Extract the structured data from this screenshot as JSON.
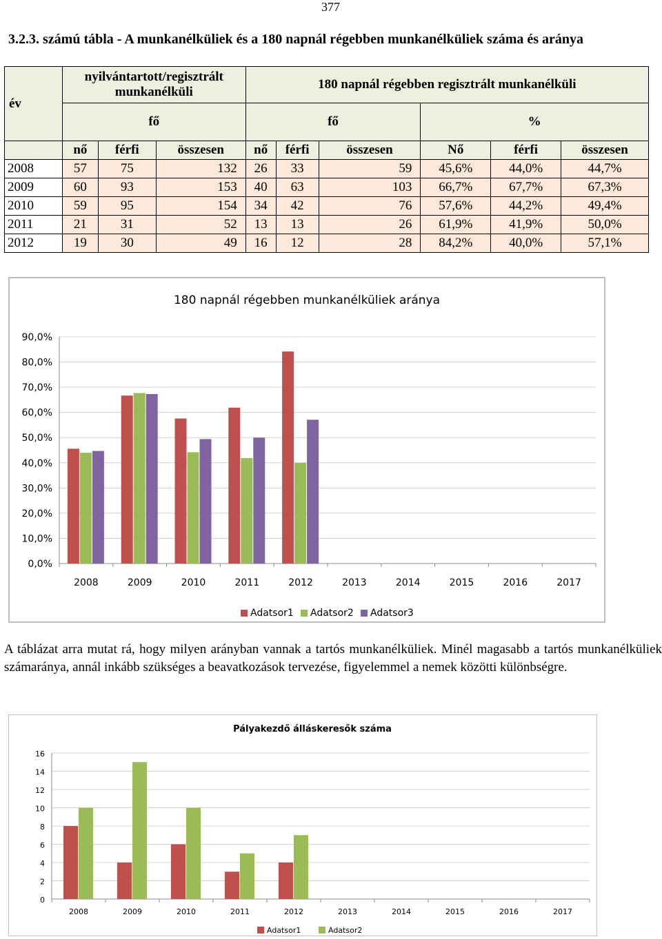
{
  "page_number": "377",
  "table": {
    "caption": "3.2.3. számú tábla - A munkanélküliek és a 180 napnál régebben munkanélküliek száma és aránya",
    "header": {
      "year": "év",
      "group1": "nyilvántartott/regisztrált munkanélküli",
      "group2": "180 napnál régebben regisztrált munkanélküli",
      "unit1": "fő",
      "unit2": "fő",
      "unit3": "%",
      "cols": [
        "nő",
        "férfi",
        "összesen",
        "nő",
        "férfi",
        "összesen",
        "Nő",
        "férfi",
        "összesen"
      ]
    },
    "rows": [
      {
        "year": "2008",
        "values": [
          "57",
          "75",
          "132",
          "26",
          "33",
          "59",
          "45,6%",
          "44,0%",
          "44,7%"
        ]
      },
      {
        "year": "2009",
        "values": [
          "60",
          "93",
          "153",
          "40",
          "63",
          "103",
          "66,7%",
          "67,7%",
          "67,3%"
        ]
      },
      {
        "year": "2010",
        "values": [
          "59",
          "95",
          "154",
          "34",
          "42",
          "76",
          "57,6%",
          "44,2%",
          "49,4%"
        ]
      },
      {
        "year": "2011",
        "values": [
          "21",
          "31",
          "52",
          "13",
          "13",
          "26",
          "61,9%",
          "41,9%",
          "50,0%"
        ]
      },
      {
        "year": "2012",
        "values": [
          "19",
          "30",
          "49",
          "16",
          "12",
          "28",
          "84,2%",
          "40,0%",
          "57,1%"
        ]
      }
    ]
  },
  "paragraph": "A táblázat arra mutat rá, hogy milyen arányban vannak a tartós munkanélküliek. Minél magasabb a tartós munkanélküliek számaránya, annál inkább szükséges a beavatkozások tervezése, figyelemmel a nemek közötti különbségre.",
  "chart_data": [
    {
      "type": "bar",
      "title": "180 napnál régebben munkanélküliek aránya",
      "categories": [
        "2008",
        "2009",
        "2010",
        "2011",
        "2012",
        "2013",
        "2014",
        "2015",
        "2016",
        "2017"
      ],
      "series": [
        {
          "name": "Adatsor1",
          "color": "#c0504d",
          "values": [
            45.6,
            66.7,
            57.6,
            61.9,
            84.2,
            null,
            null,
            null,
            null,
            null
          ]
        },
        {
          "name": "Adatsor2",
          "color": "#9bbb59",
          "values": [
            44.0,
            67.7,
            44.2,
            41.9,
            40.0,
            null,
            null,
            null,
            null,
            null
          ]
        },
        {
          "name": "Adatsor3",
          "color": "#8064a2",
          "values": [
            44.7,
            67.3,
            49.4,
            50.0,
            57.1,
            null,
            null,
            null,
            null,
            null
          ]
        }
      ],
      "yticks": [
        "0,0%",
        "10,0%",
        "20,0%",
        "30,0%",
        "40,0%",
        "50,0%",
        "60,0%",
        "70,0%",
        "80,0%",
        "90,0%"
      ],
      "ylim": [
        0,
        90
      ],
      "grid": true,
      "legend": "bottom"
    },
    {
      "type": "bar",
      "title": "Pályakezdő álláskeresők száma",
      "categories": [
        "2008",
        "2009",
        "2010",
        "2011",
        "2012",
        "2013",
        "2014",
        "2015",
        "2016",
        "2017"
      ],
      "series": [
        {
          "name": "Adatsor1",
          "color": "#c0504d",
          "values": [
            8,
            4,
            6,
            3,
            4,
            null,
            null,
            null,
            null,
            null
          ]
        },
        {
          "name": "Adatsor2",
          "color": "#9bbb59",
          "values": [
            10,
            15,
            10,
            5,
            7,
            null,
            null,
            null,
            null,
            null
          ]
        }
      ],
      "yticks": [
        "0",
        "2",
        "4",
        "6",
        "8",
        "10",
        "12",
        "14",
        "16"
      ],
      "ylim": [
        0,
        16
      ],
      "grid": true,
      "legend": "bottom"
    }
  ]
}
